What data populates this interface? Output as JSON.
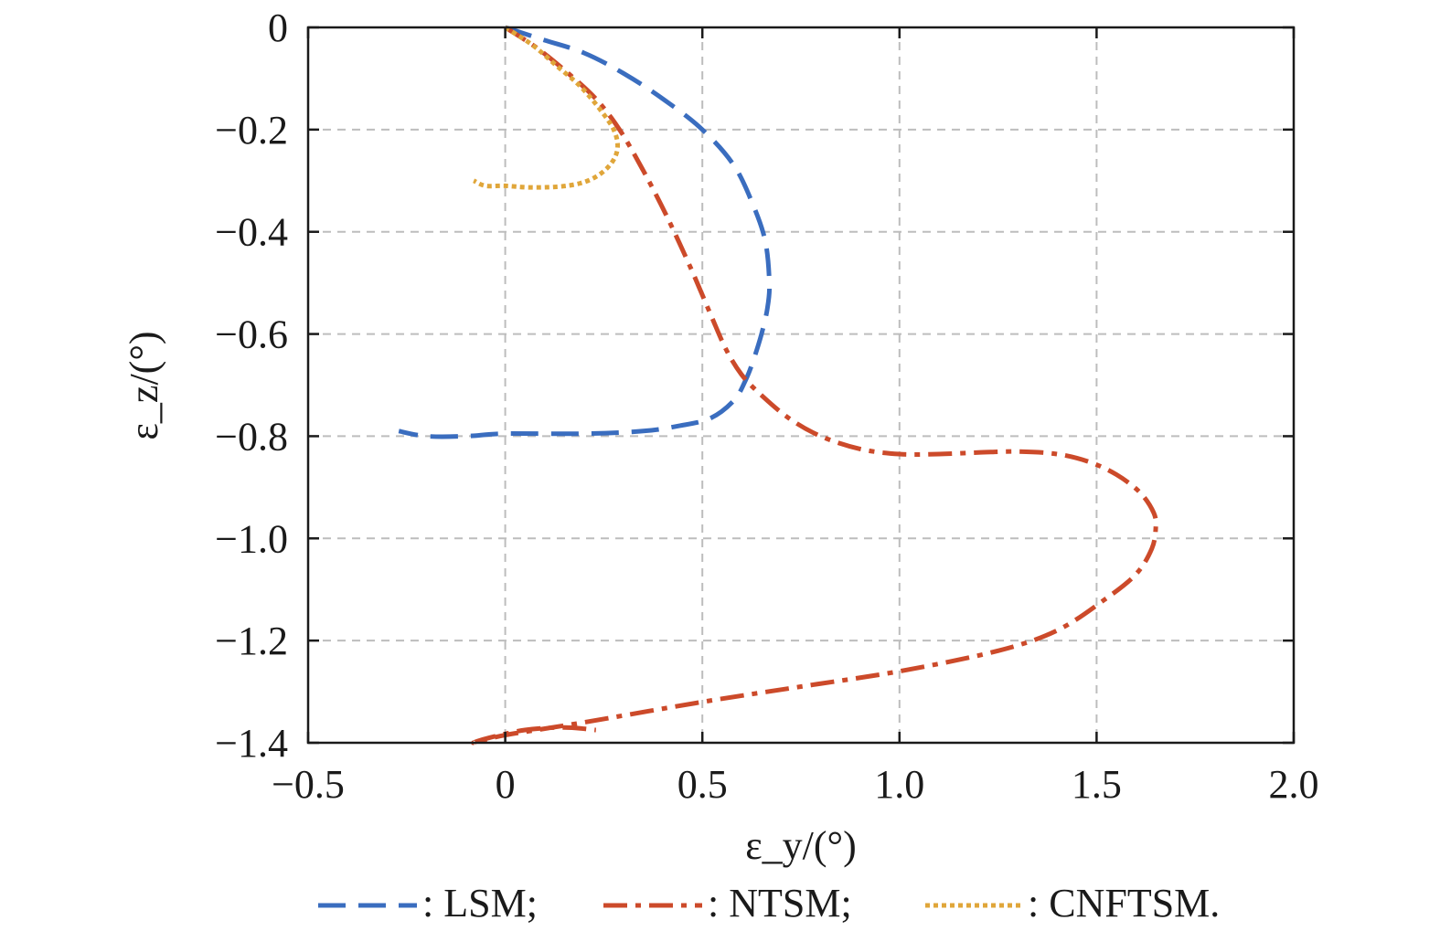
{
  "chart_data": {
    "type": "line",
    "title": "",
    "xlabel": "ε_y/(°)",
    "ylabel": "ε_z/(°)",
    "xlim": [
      -0.5,
      2.0
    ],
    "ylim": [
      -1.4,
      0
    ],
    "xticks": [
      -0.5,
      0,
      0.5,
      1.0,
      1.5,
      2.0
    ],
    "xtick_labels": [
      "−0.5",
      "0",
      "0.5",
      "1.0",
      "1.5",
      "2.0"
    ],
    "yticks": [
      0,
      -0.2,
      -0.4,
      -0.6,
      -0.8,
      -1.0,
      -1.2,
      -1.4
    ],
    "ytick_labels": [
      "0",
      "−0.2",
      "−0.4",
      "−0.6",
      "−0.8",
      "−1.0",
      "−1.2",
      "−1.4"
    ],
    "grid": true,
    "legend_position": "bottom",
    "series": [
      {
        "name": "LSM",
        "legend_label": ": LSM;",
        "color": "#3a6dbf",
        "dash": "dashed",
        "x": [
          0.0,
          0.1,
          0.2,
          0.3,
          0.4,
          0.5,
          0.58,
          0.63,
          0.66,
          0.67,
          0.665,
          0.65,
          0.63,
          0.61,
          0.58,
          0.52,
          0.44,
          0.35,
          0.2,
          0.0,
          -0.1,
          -0.2,
          -0.27
        ],
        "y": [
          0.0,
          -0.025,
          -0.05,
          -0.09,
          -0.14,
          -0.2,
          -0.27,
          -0.35,
          -0.42,
          -0.5,
          -0.55,
          -0.6,
          -0.65,
          -0.69,
          -0.73,
          -0.765,
          -0.78,
          -0.79,
          -0.795,
          -0.795,
          -0.8,
          -0.8,
          -0.79
        ]
      },
      {
        "name": "NTSM",
        "legend_label": ": NTSM;",
        "color": "#cc4a2a",
        "dash": "dashdot",
        "x": [
          0.0,
          0.08,
          0.16,
          0.23,
          0.29,
          0.35,
          0.41,
          0.47,
          0.52,
          0.56,
          0.6,
          0.65,
          0.72,
          0.8,
          0.9,
          1.0,
          1.1,
          1.2,
          1.3,
          1.4,
          1.48,
          1.55,
          1.61,
          1.645,
          1.65,
          1.64,
          1.6,
          1.52,
          1.4,
          1.25,
          1.0,
          0.75,
          0.5,
          0.2,
          0.0,
          -0.08,
          -0.04,
          0.05,
          0.15,
          0.23
        ],
        "y": [
          0.0,
          -0.04,
          -0.09,
          -0.14,
          -0.2,
          -0.28,
          -0.37,
          -0.47,
          -0.56,
          -0.63,
          -0.68,
          -0.72,
          -0.765,
          -0.8,
          -0.825,
          -0.835,
          -0.835,
          -0.832,
          -0.83,
          -0.835,
          -0.85,
          -0.875,
          -0.91,
          -0.95,
          -0.98,
          -1.02,
          -1.07,
          -1.12,
          -1.18,
          -1.22,
          -1.26,
          -1.29,
          -1.32,
          -1.36,
          -1.385,
          -1.4,
          -1.39,
          -1.375,
          -1.37,
          -1.375
        ]
      },
      {
        "name": "CNFTSM",
        "legend_label": ": CNFTSM.",
        "color": "#e0a63a",
        "dash": "dotted",
        "x": [
          0.0,
          0.07,
          0.13,
          0.19,
          0.24,
          0.275,
          0.285,
          0.27,
          0.235,
          0.19,
          0.13,
          0.06,
          0.0,
          -0.05,
          -0.08
        ],
        "y": [
          0.0,
          -0.035,
          -0.075,
          -0.115,
          -0.16,
          -0.2,
          -0.235,
          -0.265,
          -0.29,
          -0.305,
          -0.312,
          -0.313,
          -0.31,
          -0.31,
          -0.3
        ]
      }
    ]
  }
}
